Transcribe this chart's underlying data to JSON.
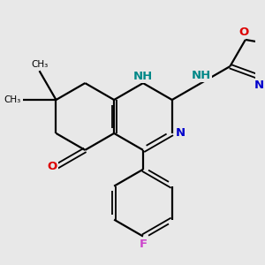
{
  "bg": "#e8e8e8",
  "bc": "#000000",
  "nc": "#0000cc",
  "oc": "#dd0000",
  "fc": "#cc44cc",
  "nhc": "#008888",
  "lw": 1.6,
  "lw_thin": 1.3,
  "fs": 9.5,
  "figsize": [
    3.0,
    3.0
  ],
  "dpi": 100,
  "xlim": [
    0.0,
    6.0
  ],
  "ylim": [
    0.0,
    6.0
  ],
  "b": 0.82
}
